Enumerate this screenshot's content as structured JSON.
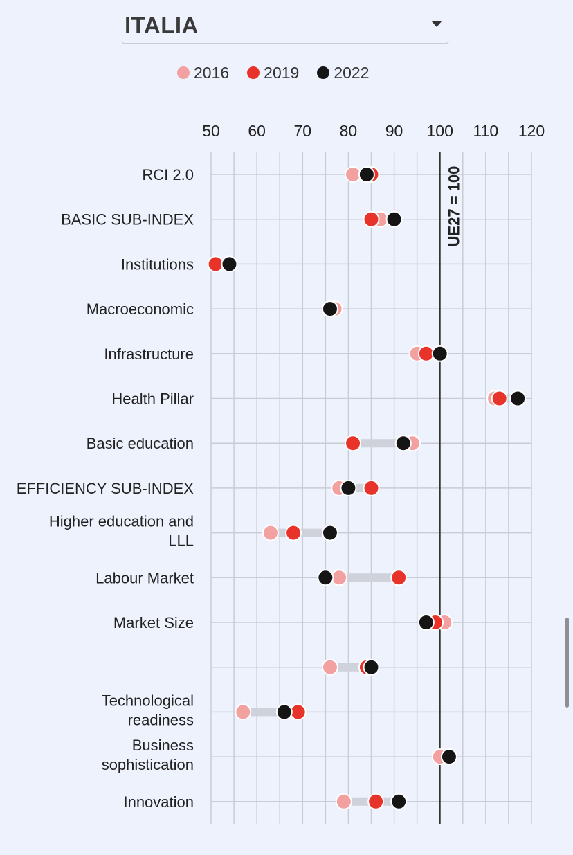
{
  "dropdown": {
    "selected": "ITALIA"
  },
  "colors": {
    "2016": "#f2a0a0",
    "2019": "#e8332a",
    "2022": "#151515",
    "connector": "#cfd2da",
    "grid": "#c9ccd4"
  },
  "chart_data": {
    "type": "dumbbell",
    "x_ticks": [
      50,
      60,
      70,
      80,
      90,
      100,
      110,
      120
    ],
    "xlim": [
      50,
      120
    ],
    "grid": true,
    "legend_position": "top",
    "reference_line": {
      "value": 100,
      "label": "UE27 = 100"
    },
    "series": [
      {
        "name": "2016"
      },
      {
        "name": "2019"
      },
      {
        "name": "2022"
      }
    ],
    "categories": [
      {
        "label": "RCI 2.0",
        "values": {
          "2016": 81,
          "2019": 85,
          "2022": 84
        }
      },
      {
        "label": "BASIC SUB-INDEX",
        "values": {
          "2016": 87,
          "2019": 85,
          "2022": 90
        }
      },
      {
        "label": "Institutions",
        "values": {
          "2016": 51,
          "2019": 51,
          "2022": 54
        }
      },
      {
        "label": "Macroeconomic",
        "values": {
          "2016": 77,
          "2019": 76,
          "2022": 76
        }
      },
      {
        "label": "Infrastructure",
        "values": {
          "2016": 95,
          "2019": 97,
          "2022": 100
        }
      },
      {
        "label": "Health Pillar",
        "values": {
          "2016": 112,
          "2019": 113,
          "2022": 117
        }
      },
      {
        "label": "Basic education",
        "values": {
          "2016": 94,
          "2019": 81,
          "2022": 92
        }
      },
      {
        "label": "EFFICIENCY SUB-INDEX",
        "values": {
          "2016": 78,
          "2019": 85,
          "2022": 80
        }
      },
      {
        "label": "Higher education and LLL",
        "lines": [
          "Higher education and",
          "LLL"
        ],
        "values": {
          "2016": 63,
          "2019": 68,
          "2022": 76
        }
      },
      {
        "label": "Labour Market",
        "values": {
          "2016": 78,
          "2019": 91,
          "2022": 75
        }
      },
      {
        "label": "Market Size",
        "values": {
          "2016": 101,
          "2019": 99,
          "2022": 97
        }
      },
      {
        "label": "",
        "values": {
          "2016": 76,
          "2019": 84,
          "2022": 85
        }
      },
      {
        "label": "Technological readiness",
        "lines": [
          "Technological",
          "readiness"
        ],
        "values": {
          "2016": 57,
          "2019": 69,
          "2022": 66
        }
      },
      {
        "label": "Business sophistication",
        "lines": [
          "Business",
          "sophistication"
        ],
        "values": {
          "2016": 100,
          "2019": 102,
          "2022": 102
        }
      },
      {
        "label": "Innovation",
        "values": {
          "2016": 79,
          "2019": 86,
          "2022": 91
        }
      }
    ]
  }
}
